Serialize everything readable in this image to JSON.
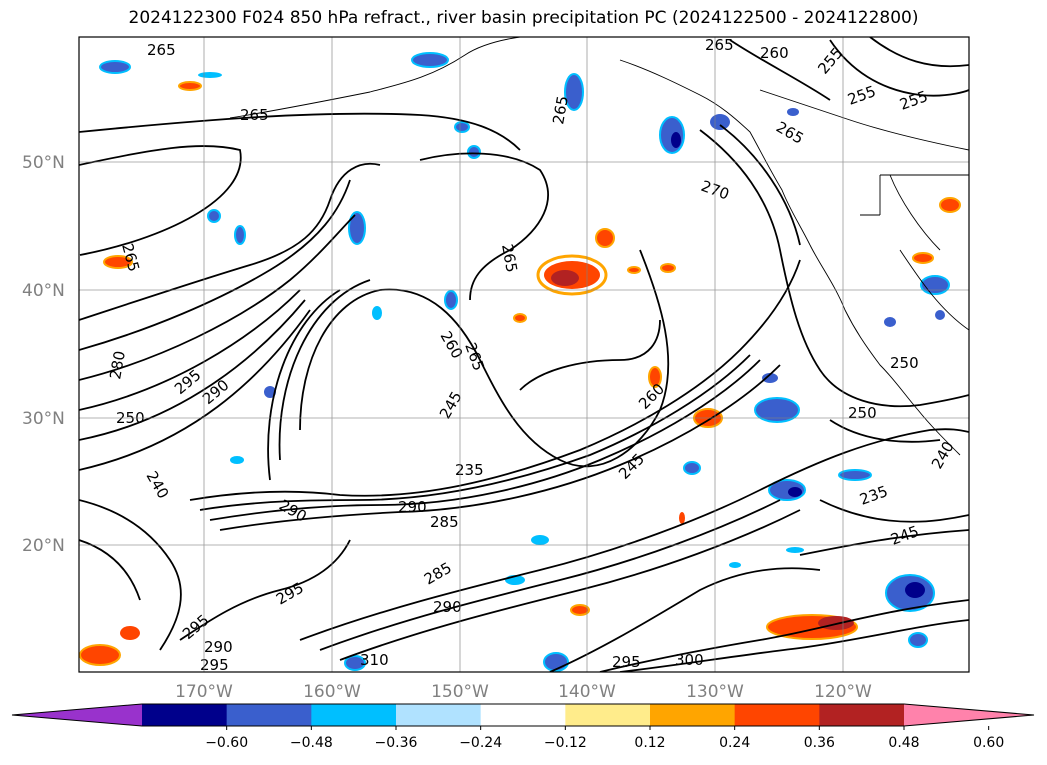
{
  "title": "2024122300 F024 850 hPa refract., river basin precipitation PC (2024122500 - 2024122800)",
  "latitudes": [
    "50°N",
    "40°N",
    "30°N",
    "20°N"
  ],
  "longitudes": [
    "170°W",
    "160°W",
    "150°W",
    "140°W",
    "130°W",
    "120°W"
  ],
  "colorbar": {
    "ticks": [
      "−0.60",
      "−0.48",
      "−0.36",
      "−0.24",
      "−0.12",
      "0.12",
      "0.24",
      "0.36",
      "0.48",
      "0.60"
    ],
    "colors": [
      "#9932cc",
      "#00008b",
      "#3a5fcd",
      "#00bfff",
      "#b0e2ff",
      "#ffffff",
      "#ffec8b",
      "#ffa500",
      "#ff4500",
      "#b22222",
      "#ff82ab"
    ]
  },
  "contour_labels": [
    "265",
    "265",
    "265",
    "265",
    "265",
    "265",
    "260",
    "255",
    "255",
    "255",
    "265",
    "270",
    "250",
    "250",
    "240",
    "235",
    "245",
    "245",
    "265",
    "260",
    "235",
    "290",
    "285",
    "290",
    "295",
    "290",
    "280",
    "240",
    "295",
    "295",
    "290",
    "285",
    "290",
    "295",
    "295",
    "300",
    "310",
    "250",
    "245",
    "260"
  ]
}
